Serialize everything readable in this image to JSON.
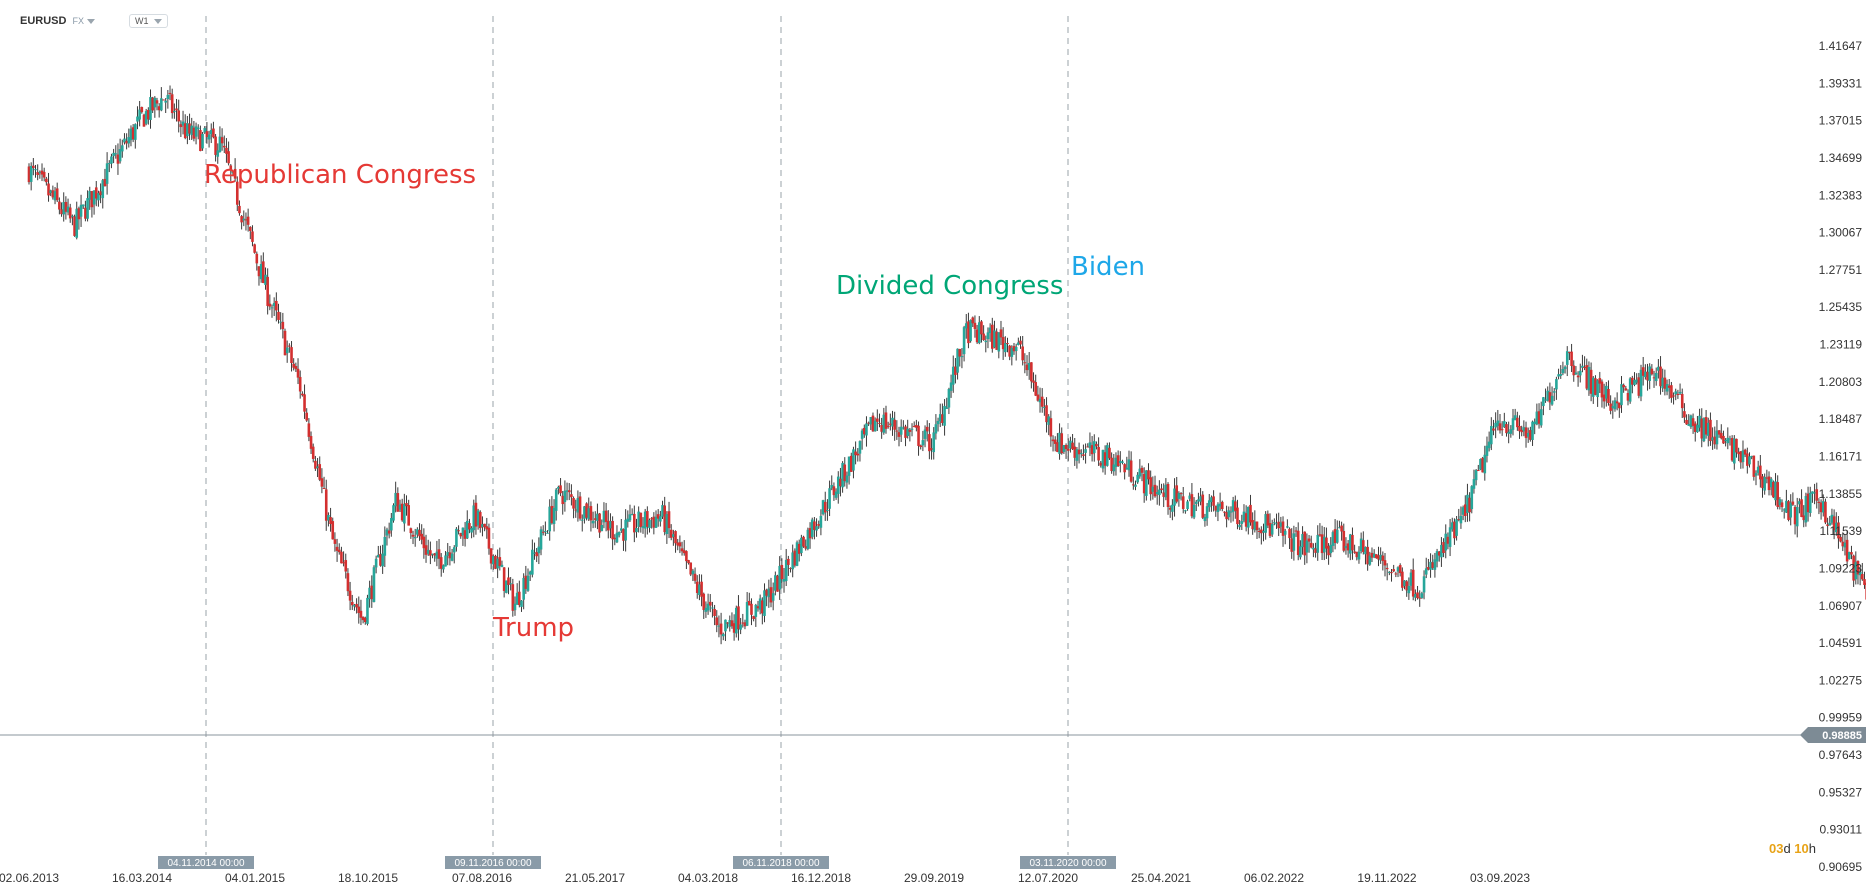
{
  "header": {
    "symbol": "EURUSD",
    "market": "FX",
    "timeframe": "W1"
  },
  "countdown": {
    "d_num": "03",
    "d_unit": "d",
    "h_num": "10",
    "h_unit": "h"
  },
  "colors": {
    "up": "#26a69a",
    "down": "#d32f2f",
    "red_annotation": "#e53935",
    "green_annotation": "#00a676",
    "blue_annotation": "#1ea7e8",
    "event_label_bg": "#8a9ba8",
    "price_label_bg": "#7d8b95",
    "price_line": "#8a949c"
  },
  "chart_data": {
    "type": "candlestick",
    "title": "",
    "y_ticks": [
      "1.41647",
      "1.39331",
      "1.37015",
      "1.34699",
      "1.32383",
      "1.30067",
      "1.27751",
      "1.25435",
      "1.23119",
      "1.20803",
      "1.18487",
      "1.16171",
      "1.13855",
      "1.11539",
      "1.09223",
      "1.06907",
      "1.04591",
      "1.02275",
      "0.99959",
      "0.97643",
      "0.95327",
      "0.93011",
      "0.90695"
    ],
    "ylim": [
      0.90695,
      1.41647
    ],
    "x_ticks": [
      "02.06.2013",
      "16.03.2014",
      "04.01.2015",
      "18.10.2015",
      "07.08.2016",
      "21.05.2017",
      "04.03.2018",
      "16.12.2018",
      "29.09.2019",
      "12.07.2020",
      "25.04.2021",
      "06.02.2022",
      "19.11.2022",
      "03.09.2023"
    ],
    "current_price": "0.98885",
    "events": [
      {
        "date_label": "04.11.2014 00:00",
        "index": 0
      },
      {
        "date_label": "09.11.2016 00:00",
        "index": 1
      },
      {
        "date_label": "06.11.2018 00:00",
        "index": 2
      },
      {
        "date_label": "03.11.2020 00:00",
        "index": 3
      }
    ],
    "annotations": [
      {
        "text": "Republican Congress",
        "color": "#e53935"
      },
      {
        "text": "Divided Congress",
        "color": "#00a676"
      },
      {
        "text": "Trump",
        "color": "#e53935"
      },
      {
        "text": "Biden",
        "color": "#1ea7e8"
      }
    ],
    "anchors": [
      {
        "x": 0,
        "y": 1.34
      },
      {
        "x": 0.4,
        "y": 1.305
      },
      {
        "x": 1.0,
        "y": 1.372
      },
      {
        "x": 1.2,
        "y": 1.385
      },
      {
        "x": 1.4,
        "y": 1.362
      },
      {
        "x": 1.7,
        "y": 1.355
      },
      {
        "x": 2.1,
        "y": 1.265
      },
      {
        "x": 2.4,
        "y": 1.205
      },
      {
        "x": 2.7,
        "y": 1.105
      },
      {
        "x": 2.95,
        "y": 1.06
      },
      {
        "x": 3.25,
        "y": 1.135
      },
      {
        "x": 3.6,
        "y": 1.095
      },
      {
        "x": 3.95,
        "y": 1.125
      },
      {
        "x": 4.3,
        "y": 1.07
      },
      {
        "x": 4.7,
        "y": 1.14
      },
      {
        "x": 5.2,
        "y": 1.115
      },
      {
        "x": 5.6,
        "y": 1.125
      },
      {
        "x": 5.8,
        "y": 1.095
      },
      {
        "x": 6.1,
        "y": 1.055
      },
      {
        "x": 6.5,
        "y": 1.07
      },
      {
        "x": 6.9,
        "y": 1.115
      },
      {
        "x": 7.5,
        "y": 1.185
      },
      {
        "x": 8.0,
        "y": 1.17
      },
      {
        "x": 8.3,
        "y": 1.24
      },
      {
        "x": 8.75,
        "y": 1.23
      },
      {
        "x": 9.1,
        "y": 1.17
      },
      {
        "x": 9.6,
        "y": 1.16
      },
      {
        "x": 10.1,
        "y": 1.135
      },
      {
        "x": 10.8,
        "y": 1.125
      },
      {
        "x": 11.3,
        "y": 1.105
      },
      {
        "x": 11.6,
        "y": 1.11
      },
      {
        "x": 12.0,
        "y": 1.095
      },
      {
        "x": 12.3,
        "y": 1.08
      },
      {
        "x": 12.7,
        "y": 1.125
      },
      {
        "x": 13.0,
        "y": 1.185
      },
      {
        "x": 13.3,
        "y": 1.175
      },
      {
        "x": 13.6,
        "y": 1.225
      },
      {
        "x": 14.0,
        "y": 1.195
      },
      {
        "x": 14.4,
        "y": 1.215
      },
      {
        "x": 14.7,
        "y": 1.185
      },
      {
        "x": 15.1,
        "y": 1.165
      },
      {
        "x": 15.4,
        "y": 1.145
      },
      {
        "x": 15.6,
        "y": 1.125
      },
      {
        "x": 15.85,
        "y": 1.135
      },
      {
        "x": 16.2,
        "y": 1.085
      },
      {
        "x": 16.5,
        "y": 1.06
      },
      {
        "x": 16.7,
        "y": 1.04
      },
      {
        "x": 16.85,
        "y": 1.06
      },
      {
        "x": 17.15,
        "y": 1.005
      },
      {
        "x": 17.4,
        "y": 0.98
      },
      {
        "x": 17.55,
        "y": 0.975
      },
      {
        "x": 17.7,
        "y": 0.99
      }
    ]
  }
}
